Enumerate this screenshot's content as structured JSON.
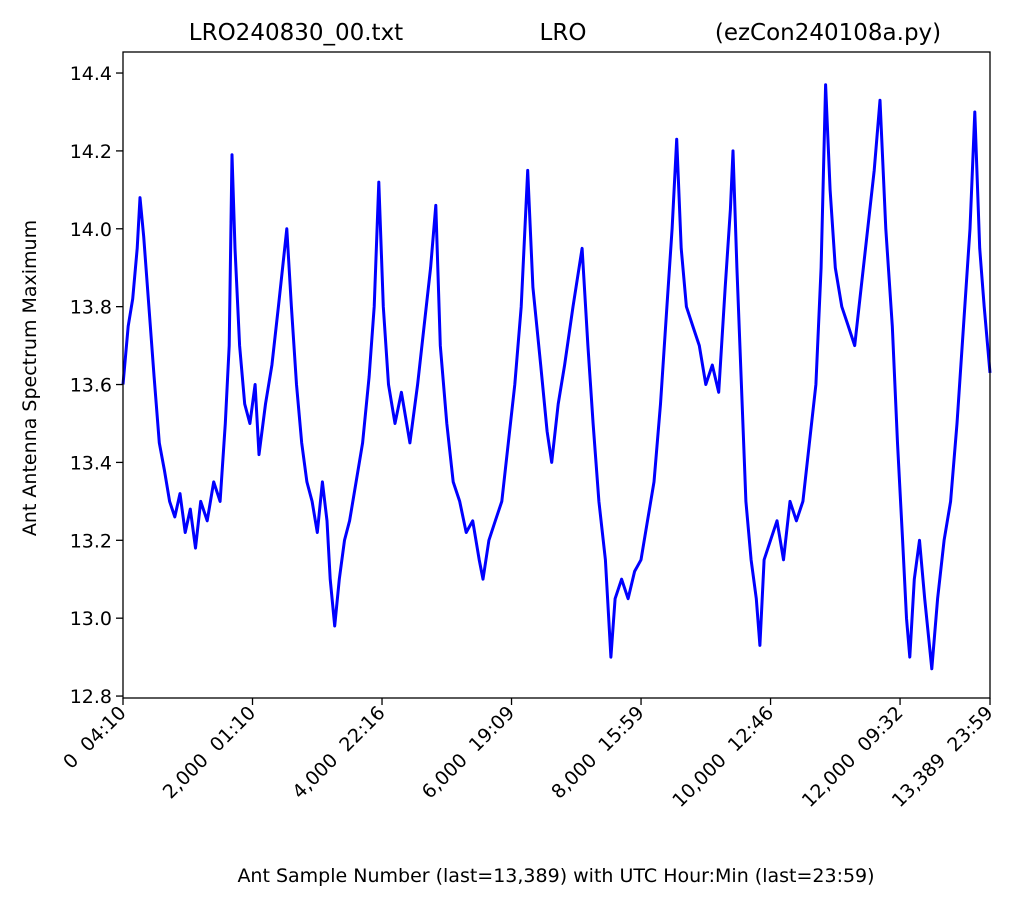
{
  "chart_data": {
    "type": "line",
    "titles": [
      "LRO240830_00.txt",
      "LRO",
      "(ezCon240108a.py)"
    ],
    "x_label": "Ant Sample Number (last=13,389) with UTC Hour:Min (last=23:59)",
    "y_label": "Ant Antenna Spectrum Maximum",
    "color": "#0000ff",
    "xlim": [
      0,
      13389
    ],
    "ylim": [
      12.795,
      14.454
    ],
    "xticks": [
      {
        "value": 0,
        "label": "0  04:10"
      },
      {
        "value": 2000,
        "label": "2,000  01:10"
      },
      {
        "value": 4000,
        "label": "4,000  22:16"
      },
      {
        "value": 6000,
        "label": "6,000  19:09"
      },
      {
        "value": 8000,
        "label": "8,000  15:59"
      },
      {
        "value": 10000,
        "label": "10,000  12:46"
      },
      {
        "value": 12000,
        "label": "12,000  09:32"
      },
      {
        "value": 13389,
        "label": "13,389  23:59"
      }
    ],
    "yticks": [
      12.8,
      {
        "value": 13,
        "label": "13.0"
      },
      13.2,
      13.4,
      13.6,
      13.8,
      {
        "value": 14,
        "label": "14.0"
      },
      14.2,
      14.4
    ],
    "x": [
      0,
      80,
      150,
      220,
      262,
      320,
      400,
      480,
      560,
      640,
      720,
      800,
      880,
      960,
      1040,
      1120,
      1200,
      1300,
      1400,
      1500,
      1580,
      1640,
      1683,
      1730,
      1800,
      1880,
      1960,
      2040,
      2100,
      2200,
      2300,
      2400,
      2530,
      2600,
      2680,
      2760,
      2840,
      2920,
      3000,
      3080,
      3150,
      3200,
      3270,
      3340,
      3420,
      3500,
      3600,
      3700,
      3800,
      3880,
      3950,
      4020,
      4100,
      4200,
      4300,
      4430,
      4550,
      4650,
      4750,
      4830,
      4900,
      5000,
      5100,
      5200,
      5300,
      5400,
      5500,
      5560,
      5650,
      5750,
      5850,
      5950,
      6050,
      6150,
      6250,
      6330,
      6450,
      6550,
      6620,
      6720,
      6820,
      6950,
      7090,
      7180,
      7260,
      7350,
      7450,
      7535,
      7600,
      7700,
      7800,
      7900,
      8000,
      8100,
      8200,
      8300,
      8400,
      8480,
      8550,
      8620,
      8700,
      8800,
      8900,
      9000,
      9100,
      9200,
      9300,
      9380,
      9420,
      9480,
      9550,
      9620,
      9700,
      9780,
      9835,
      9900,
      10000,
      10100,
      10200,
      10300,
      10400,
      10500,
      10600,
      10700,
      10780,
      10850,
      10920,
      11000,
      11100,
      11200,
      11300,
      11400,
      11500,
      11600,
      11690,
      11780,
      11880,
      11960,
      12040,
      12100,
      12150,
      12220,
      12300,
      12380,
      12490,
      12580,
      12680,
      12780,
      12880,
      12980,
      13080,
      13155,
      13230,
      13300,
      13389
    ],
    "values": [
      13.6,
      13.75,
      13.82,
      13.95,
      14.08,
      13.98,
      13.8,
      13.62,
      13.45,
      13.38,
      13.3,
      13.26,
      13.32,
      13.22,
      13.28,
      13.18,
      13.3,
      13.25,
      13.35,
      13.3,
      13.5,
      13.7,
      14.19,
      13.95,
      13.7,
      13.55,
      13.5,
      13.6,
      13.42,
      13.55,
      13.65,
      13.8,
      14.0,
      13.8,
      13.6,
      13.45,
      13.35,
      13.3,
      13.22,
      13.35,
      13.25,
      13.1,
      12.98,
      13.1,
      13.2,
      13.25,
      13.35,
      13.45,
      13.62,
      13.8,
      14.12,
      13.8,
      13.6,
      13.5,
      13.58,
      13.45,
      13.6,
      13.75,
      13.9,
      14.06,
      13.7,
      13.5,
      13.35,
      13.3,
      13.22,
      13.25,
      13.15,
      13.1,
      13.2,
      13.25,
      13.3,
      13.45,
      13.6,
      13.8,
      14.15,
      13.85,
      13.65,
      13.48,
      13.4,
      13.55,
      13.65,
      13.8,
      13.95,
      13.7,
      13.5,
      13.3,
      13.15,
      12.9,
      13.05,
      13.1,
      13.05,
      13.12,
      13.15,
      13.25,
      13.35,
      13.55,
      13.8,
      14.0,
      14.23,
      13.95,
      13.8,
      13.75,
      13.7,
      13.6,
      13.65,
      13.58,
      13.85,
      14.05,
      14.2,
      13.9,
      13.6,
      13.3,
      13.15,
      13.05,
      12.93,
      13.15,
      13.2,
      13.25,
      13.15,
      13.3,
      13.25,
      13.3,
      13.45,
      13.6,
      13.9,
      14.37,
      14.1,
      13.9,
      13.8,
      13.75,
      13.7,
      13.85,
      14.0,
      14.15,
      14.33,
      14.0,
      13.75,
      13.45,
      13.2,
      13.0,
      12.9,
      13.1,
      13.2,
      13.05,
      12.87,
      13.05,
      13.2,
      13.3,
      13.5,
      13.75,
      14.0,
      14.3,
      13.95,
      13.8,
      13.63
    ]
  }
}
